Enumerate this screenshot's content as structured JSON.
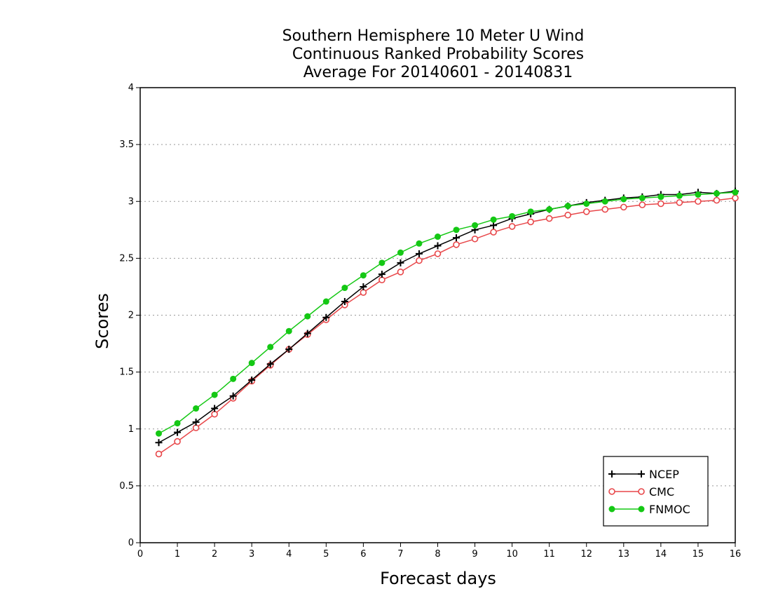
{
  "chart_data": {
    "type": "line",
    "title": [
      "Southern Hemisphere 10 Meter U Wind",
      "Continuous Ranked Probability Scores",
      "Average For 20140601 - 20140831"
    ],
    "xlabel": "Forecast days",
    "ylabel": "Scores",
    "xlim": [
      0,
      16
    ],
    "ylim": [
      0,
      4
    ],
    "xticks": [
      0,
      1,
      2,
      3,
      4,
      5,
      6,
      7,
      8,
      9,
      10,
      11,
      12,
      13,
      14,
      15,
      16
    ],
    "yticks": [
      0,
      0.5,
      1,
      1.5,
      2,
      2.5,
      3,
      3.5,
      4
    ],
    "ytick_labels": [
      "0",
      "0.5",
      "1",
      "1.5",
      "2",
      "2.5",
      "3",
      "3.5",
      "4"
    ],
    "grid": "horizontal dotted",
    "legend_position": "bottom-right",
    "x": [
      0.5,
      1,
      1.5,
      2,
      2.5,
      3,
      3.5,
      4,
      4.5,
      5,
      5.5,
      6,
      6.5,
      7,
      7.5,
      8,
      8.5,
      9,
      9.5,
      10,
      10.5,
      11,
      11.5,
      12,
      12.5,
      13,
      13.5,
      14,
      14.5,
      15,
      15.5,
      16
    ],
    "series": [
      {
        "name": "NCEP",
        "color": "#000000",
        "marker": "plus",
        "values": [
          0.88,
          0.97,
          1.06,
          1.18,
          1.29,
          1.43,
          1.57,
          1.7,
          1.84,
          1.98,
          2.12,
          2.25,
          2.36,
          2.46,
          2.54,
          2.61,
          2.68,
          2.75,
          2.79,
          2.85,
          2.89,
          2.93,
          2.96,
          2.99,
          3.01,
          3.03,
          3.04,
          3.06,
          3.06,
          3.08,
          3.07,
          3.09
        ]
      },
      {
        "name": "CMC",
        "color": "#e8474a",
        "marker": "open-circle",
        "values": [
          0.78,
          0.89,
          1.01,
          1.13,
          1.27,
          1.42,
          1.56,
          1.7,
          1.83,
          1.96,
          2.09,
          2.2,
          2.31,
          2.38,
          2.48,
          2.54,
          2.62,
          2.67,
          2.73,
          2.78,
          2.82,
          2.85,
          2.88,
          2.91,
          2.93,
          2.95,
          2.97,
          2.98,
          2.99,
          3.0,
          3.01,
          3.03
        ]
      },
      {
        "name": "FNMOC",
        "color": "#14c814",
        "marker": "filled-circle",
        "values": [
          0.96,
          1.05,
          1.18,
          1.3,
          1.44,
          1.58,
          1.72,
          1.86,
          1.99,
          2.12,
          2.24,
          2.35,
          2.46,
          2.55,
          2.63,
          2.69,
          2.75,
          2.79,
          2.84,
          2.87,
          2.91,
          2.93,
          2.96,
          2.98,
          3.0,
          3.02,
          3.03,
          3.04,
          3.05,
          3.06,
          3.07,
          3.08
        ]
      }
    ]
  }
}
